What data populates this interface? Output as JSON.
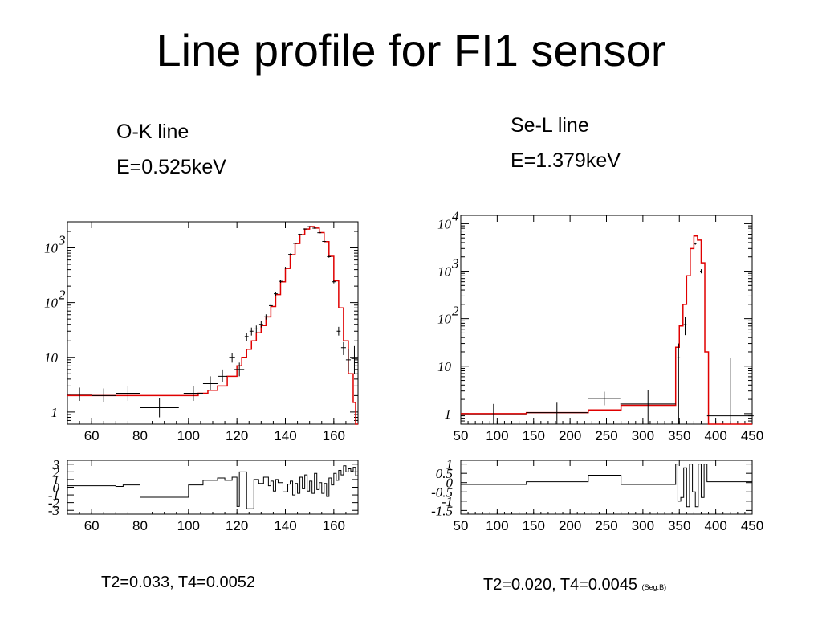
{
  "title": "Line profile for FI1 sensor",
  "panels": [
    {
      "name": "O-K line",
      "energy": "E=0.525keV",
      "footer": "T2=0.033, T4=0.0052",
      "footer_note": ""
    },
    {
      "name": "Se-L line",
      "energy": "E=1.379keV",
      "footer": "T2=0.020, T4=0.0045",
      "footer_note": "(Seg.B)"
    }
  ],
  "colors": {
    "model": "#e00000",
    "data": "#000000",
    "frame": "#000000"
  },
  "chart_data": [
    {
      "type": "line",
      "title": "O-K line",
      "yscale": "log",
      "xlim": [
        50,
        170
      ],
      "ylim": [
        0.6,
        3000
      ],
      "x_ticks": [
        "60",
        "80",
        "100",
        "120",
        "140",
        "160"
      ],
      "y_ticks": [
        {
          "base": "1",
          "exp": "",
          "value": 1
        },
        {
          "base": "10",
          "exp": "",
          "value": 10
        },
        {
          "base": "10",
          "exp": "2",
          "value": 100
        },
        {
          "base": "10",
          "exp": "3",
          "value": 1000
        }
      ],
      "model_steps": [
        [
          50,
          2.0
        ],
        [
          100,
          2.0
        ],
        [
          104,
          2.2
        ],
        [
          108,
          2.5
        ],
        [
          112,
          3.0
        ],
        [
          116,
          4.5
        ],
        [
          120,
          7
        ],
        [
          122,
          10
        ],
        [
          124,
          14
        ],
        [
          126,
          20
        ],
        [
          128,
          28
        ],
        [
          130,
          38
        ],
        [
          132,
          55
        ],
        [
          134,
          85
        ],
        [
          136,
          140
        ],
        [
          138,
          240
        ],
        [
          140,
          420
        ],
        [
          142,
          750
        ],
        [
          144,
          1200
        ],
        [
          146,
          1750
        ],
        [
          148,
          2200
        ],
        [
          150,
          2450
        ],
        [
          152,
          2300
        ],
        [
          154,
          1900
        ],
        [
          156,
          1300
        ],
        [
          158,
          700
        ],
        [
          160,
          250
        ],
        [
          162,
          80
        ],
        [
          164,
          20
        ],
        [
          166,
          5
        ],
        [
          168,
          1.5
        ],
        [
          169,
          0.6
        ],
        [
          170,
          0.6
        ]
      ],
      "data_points": [
        {
          "x": 55,
          "xerr": 5,
          "y": 2.1,
          "ylo": 1.6,
          "yhi": 2.8
        },
        {
          "x": 65,
          "xerr": 5,
          "y": 2.0,
          "ylo": 1.5,
          "yhi": 2.7
        },
        {
          "x": 75,
          "xerr": 5,
          "y": 2.2,
          "ylo": 1.6,
          "yhi": 3.0
        },
        {
          "x": 88,
          "xerr": 8,
          "y": 1.2,
          "ylo": 0.8,
          "yhi": 1.8
        },
        {
          "x": 102,
          "xerr": 4,
          "y": 2.2,
          "ylo": 1.6,
          "yhi": 3.0
        },
        {
          "x": 109,
          "xerr": 3,
          "y": 3.3,
          "ylo": 2.5,
          "yhi": 4.5
        },
        {
          "x": 114,
          "xerr": 2,
          "y": 4.5,
          "ylo": 3.5,
          "yhi": 6
        },
        {
          "x": 118,
          "xerr": 1.2,
          "y": 10,
          "ylo": 8,
          "yhi": 12
        },
        {
          "x": 121,
          "xerr": 2,
          "y": 6,
          "ylo": 4.5,
          "yhi": 8
        },
        {
          "x": 124,
          "xerr": 0.8,
          "y": 24,
          "ylo": 20,
          "yhi": 28
        },
        {
          "x": 126,
          "xerr": 0.8,
          "y": 30,
          "ylo": 25,
          "yhi": 35
        },
        {
          "x": 128,
          "xerr": 0.8,
          "y": 33,
          "ylo": 28,
          "yhi": 38
        },
        {
          "x": 130,
          "xerr": 0.8,
          "y": 40,
          "ylo": 35,
          "yhi": 46
        },
        {
          "x": 132,
          "xerr": 0.8,
          "y": 55,
          "ylo": 49,
          "yhi": 61
        },
        {
          "x": 134,
          "xerr": 0.8,
          "y": 88,
          "ylo": 80,
          "yhi": 96
        },
        {
          "x": 136,
          "xerr": 0.8,
          "y": 145,
          "ylo": 134,
          "yhi": 156
        },
        {
          "x": 138,
          "xerr": 0.8,
          "y": 245,
          "ylo": 230,
          "yhi": 260
        },
        {
          "x": 140,
          "xerr": 0.8,
          "y": 430,
          "ylo": 410,
          "yhi": 450
        },
        {
          "x": 142,
          "xerr": 0.8,
          "y": 760,
          "ylo": 730,
          "yhi": 790
        },
        {
          "x": 144,
          "xerr": 0.8,
          "y": 1210,
          "ylo": 1170,
          "yhi": 1250
        },
        {
          "x": 146,
          "xerr": 0.8,
          "y": 1760,
          "ylo": 1710,
          "yhi": 1810
        },
        {
          "x": 148,
          "xerr": 0.8,
          "y": 2210,
          "ylo": 2160,
          "yhi": 2260
        },
        {
          "x": 150,
          "xerr": 0.8,
          "y": 2440,
          "ylo": 2390,
          "yhi": 2490
        },
        {
          "x": 152,
          "xerr": 0.8,
          "y": 2290,
          "ylo": 2240,
          "yhi": 2340
        },
        {
          "x": 154,
          "xerr": 0.8,
          "y": 1890,
          "ylo": 1840,
          "yhi": 1940
        },
        {
          "x": 156,
          "xerr": 0.8,
          "y": 1310,
          "ylo": 1270,
          "yhi": 1350
        },
        {
          "x": 158,
          "xerr": 0.8,
          "y": 690,
          "ylo": 660,
          "yhi": 720
        },
        {
          "x": 160,
          "xerr": 0.8,
          "y": 240,
          "ylo": 225,
          "yhi": 255
        },
        {
          "x": 162,
          "xerr": 0.8,
          "y": 30,
          "ylo": 25,
          "yhi": 36
        },
        {
          "x": 164,
          "xerr": 1,
          "y": 15,
          "ylo": 11,
          "yhi": 19
        },
        {
          "x": 166,
          "xerr": 1,
          "y": 9,
          "ylo": 5.5,
          "yhi": 14
        },
        {
          "x": 168.5,
          "xerr": 1.3,
          "y": 9.5,
          "ylo": 5,
          "yhi": 16
        }
      ],
      "residuals": {
        "xlim": [
          50,
          170
        ],
        "ylim": [
          -3.5,
          3.5
        ],
        "y_ticks": [
          "3",
          "2",
          "1",
          "0",
          "-1",
          "-2",
          "-3"
        ],
        "y_tick_values": [
          3,
          2,
          1,
          0,
          -1,
          -2,
          -3
        ],
        "steps": [
          [
            50,
            0.2
          ],
          [
            70,
            0.1
          ],
          [
            73,
            0.3
          ],
          [
            80,
            -1.3
          ],
          [
            100,
            0.3
          ],
          [
            106,
            0.9
          ],
          [
            112,
            1.2
          ],
          [
            115,
            0.9
          ],
          [
            118,
            1.3
          ],
          [
            120,
            -2.5
          ],
          [
            121,
            2.0
          ],
          [
            124,
            -2.8
          ],
          [
            127,
            1.0
          ],
          [
            129,
            0.5
          ],
          [
            131,
            1.3
          ],
          [
            133,
            0.2
          ],
          [
            134,
            0.8
          ],
          [
            135,
            -0.5
          ],
          [
            136,
            1.0
          ],
          [
            137,
            0.6
          ],
          [
            139,
            -0.6
          ],
          [
            141,
            0.4
          ],
          [
            142,
            0.8
          ],
          [
            143,
            -1.0
          ],
          [
            144,
            0.5
          ],
          [
            145,
            -0.8
          ],
          [
            146,
            1.3
          ],
          [
            147,
            -0.2
          ],
          [
            148,
            1.6
          ],
          [
            149,
            -0.5
          ],
          [
            150,
            0.8
          ],
          [
            151,
            -0.8
          ],
          [
            152,
            1.8
          ],
          [
            153,
            -0.3
          ],
          [
            154,
            0.6
          ],
          [
            155,
            -0.8
          ],
          [
            156,
            0.5
          ],
          [
            157,
            -1.2
          ],
          [
            158,
            1.2
          ],
          [
            159,
            0.3
          ],
          [
            160,
            1.8
          ],
          [
            161,
            0.9
          ],
          [
            162,
            2.2
          ],
          [
            163,
            1.6
          ],
          [
            164,
            2.8
          ],
          [
            165,
            2.0
          ],
          [
            166,
            2.4
          ],
          [
            167,
            2.1
          ],
          [
            168,
            2.6
          ],
          [
            169,
            1.5
          ],
          [
            170,
            1.5
          ]
        ]
      }
    },
    {
      "type": "line",
      "title": "Se-L line",
      "yscale": "log",
      "xlim": [
        50,
        450
      ],
      "ylim": [
        0.6,
        15000
      ],
      "x_ticks": [
        "50",
        "100",
        "150",
        "200",
        "250",
        "300",
        "350",
        "400",
        "450"
      ],
      "y_ticks": [
        {
          "base": "1",
          "exp": "",
          "value": 1
        },
        {
          "base": "10",
          "exp": "",
          "value": 10
        },
        {
          "base": "10",
          "exp": "2",
          "value": 100
        },
        {
          "base": "10",
          "exp": "3",
          "value": 1000
        },
        {
          "base": "10",
          "exp": "4",
          "value": 10000
        }
      ],
      "model_steps": [
        [
          50,
          1.0
        ],
        [
          140,
          1.05
        ],
        [
          225,
          1.2
        ],
        [
          270,
          1.5
        ],
        [
          345,
          25
        ],
        [
          350,
          70
        ],
        [
          355,
          200
        ],
        [
          360,
          800
        ],
        [
          365,
          3000
        ],
        [
          370,
          5500
        ],
        [
          375,
          4500
        ],
        [
          380,
          1500
        ],
        [
          385,
          20
        ],
        [
          390,
          0.6
        ],
        [
          450,
          0.6
        ]
      ],
      "data_points": [
        {
          "x": 95,
          "xerr": 45,
          "y": 0.95,
          "ylo": 0.55,
          "yhi": 1.6
        },
        {
          "x": 182,
          "xerr": 42,
          "y": 1.05,
          "ylo": 0.6,
          "yhi": 1.7
        },
        {
          "x": 247,
          "xerr": 22,
          "y": 2.1,
          "ylo": 1.5,
          "yhi": 2.9
        },
        {
          "x": 307,
          "xerr": 38,
          "y": 1.6,
          "ylo": 0.55,
          "yhi": 3.2
        },
        {
          "x": 349,
          "xerr": 2,
          "y": 15,
          "ylo": 0.55,
          "yhi": 30
        },
        {
          "x": 358,
          "xerr": 2,
          "y": 75,
          "ylo": 45,
          "yhi": 110
        },
        {
          "x": 372,
          "xerr": 1.5,
          "y": 3800,
          "ylo": 3600,
          "yhi": 4000
        },
        {
          "x": 380,
          "xerr": 1.5,
          "y": 1000,
          "ylo": 900,
          "yhi": 1100
        },
        {
          "x": 420,
          "xerr": 32,
          "y": 0.9,
          "ylo": 0.55,
          "yhi": 15
        }
      ],
      "residuals": {
        "xlim": [
          50,
          450
        ],
        "ylim": [
          -1.7,
          1.2
        ],
        "y_ticks": [
          "1",
          "0.5",
          "0",
          "-0.5",
          "-1",
          "-1.5"
        ],
        "y_tick_values": [
          1,
          0.5,
          0,
          -0.5,
          -1,
          -1.5
        ],
        "steps": [
          [
            50,
            -0.1
          ],
          [
            140,
            0.05
          ],
          [
            225,
            0.4
          ],
          [
            270,
            -0.1
          ],
          [
            345,
            1.0
          ],
          [
            348,
            -1.0
          ],
          [
            352,
            -0.8
          ],
          [
            356,
            0.8
          ],
          [
            360,
            -1.3
          ],
          [
            364,
            1.0
          ],
          [
            368,
            -0.5
          ],
          [
            372,
            -1.3
          ],
          [
            376,
            1.0
          ],
          [
            380,
            -0.8
          ],
          [
            384,
            1.0
          ],
          [
            388,
            0.05
          ],
          [
            450,
            0.05
          ]
        ]
      }
    }
  ]
}
